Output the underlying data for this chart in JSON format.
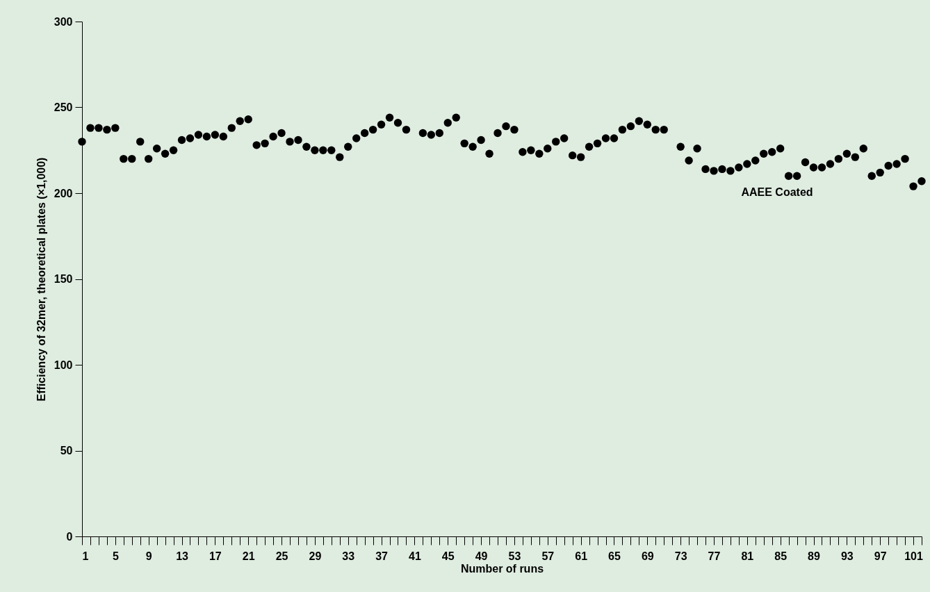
{
  "chart_data": {
    "type": "scatter",
    "xlabel": "Number of runs",
    "ylabel": "Efficiency of 32mer, theoretical plates (×1,000)",
    "x": [
      1,
      2,
      3,
      4,
      5,
      6,
      7,
      8,
      9,
      10,
      11,
      12,
      13,
      14,
      15,
      16,
      17,
      18,
      19,
      20,
      21,
      22,
      23,
      24,
      25,
      26,
      27,
      28,
      29,
      30,
      31,
      32,
      33,
      34,
      35,
      36,
      37,
      38,
      39,
      40,
      41,
      42,
      43,
      44,
      45,
      46,
      47,
      48,
      49,
      50,
      51,
      52,
      53,
      54,
      55,
      56,
      57,
      58,
      59,
      60,
      61,
      62,
      63,
      64,
      65,
      66,
      67,
      68,
      69,
      70,
      71,
      72,
      73,
      74,
      75,
      76,
      77,
      78,
      79,
      80,
      81,
      82,
      83,
      84,
      85,
      86,
      87,
      88,
      89,
      90,
      91,
      92,
      93,
      94,
      95,
      96,
      97,
      98,
      99,
      100,
      101,
      102
    ],
    "series": [
      {
        "name": "AAEE Coated",
        "color": "#000000",
        "values": [
          230,
          238,
          238,
          237,
          238,
          220,
          220,
          230,
          220,
          226,
          223,
          225,
          231,
          232,
          234,
          233,
          234,
          233,
          238,
          242,
          243,
          228,
          229,
          233,
          235,
          230,
          231,
          227,
          225,
          225,
          225,
          221,
          227,
          232,
          235,
          237,
          240,
          244,
          241,
          237,
          null,
          235,
          234,
          235,
          241,
          244,
          229,
          227,
          231,
          223,
          235,
          239,
          237,
          224,
          225,
          223,
          226,
          230,
          232,
          222,
          221,
          227,
          229,
          232,
          232,
          237,
          239,
          242,
          240,
          237,
          237,
          null,
          227,
          219,
          226,
          214,
          213,
          214,
          213,
          215,
          217,
          219,
          223,
          224,
          226,
          210,
          210,
          218,
          215,
          215,
          217,
          220,
          223,
          221,
          226,
          210,
          212,
          216,
          217,
          220,
          204,
          207
        ]
      }
    ],
    "xlim": [
      1,
      102
    ],
    "xticks": [
      1,
      {
        "value": 2,
        "label": null
      },
      {
        "value": 3,
        "label": null
      },
      {
        "value": 4,
        "label": null
      },
      5,
      {
        "value": 6,
        "label": null
      },
      {
        "value": 7,
        "label": null
      },
      {
        "value": 8,
        "label": null
      },
      9,
      {
        "value": 10,
        "label": null
      },
      {
        "value": 11,
        "label": null
      },
      {
        "value": 12,
        "label": null
      },
      13,
      {
        "value": 14,
        "label": null
      },
      {
        "value": 15,
        "label": null
      },
      {
        "value": 16,
        "label": null
      },
      17,
      {
        "value": 18,
        "label": null
      },
      {
        "value": 19,
        "label": null
      },
      {
        "value": 20,
        "label": null
      },
      21,
      {
        "value": 22,
        "label": null
      },
      {
        "value": 23,
        "label": null
      },
      {
        "value": 24,
        "label": null
      },
      25,
      {
        "value": 26,
        "label": null
      },
      {
        "value": 27,
        "label": null
      },
      {
        "value": 28,
        "label": null
      },
      29,
      {
        "value": 30,
        "label": null
      },
      {
        "value": 31,
        "label": null
      },
      {
        "value": 32,
        "label": null
      },
      33,
      {
        "value": 34,
        "label": null
      },
      {
        "value": 35,
        "label": null
      },
      {
        "value": 36,
        "label": null
      },
      37,
      {
        "value": 38,
        "label": null
      },
      {
        "value": 39,
        "label": null
      },
      {
        "value": 40,
        "label": null
      },
      41,
      {
        "value": 42,
        "label": null
      },
      {
        "value": 43,
        "label": null
      },
      {
        "value": 44,
        "label": null
      },
      45,
      {
        "value": 46,
        "label": null
      },
      {
        "value": 47,
        "label": null
      },
      {
        "value": 48,
        "label": null
      },
      49,
      {
        "value": 50,
        "label": null
      },
      {
        "value": 51,
        "label": null
      },
      {
        "value": 52,
        "label": null
      },
      53,
      {
        "value": 54,
        "label": null
      },
      {
        "value": 55,
        "label": null
      },
      {
        "value": 56,
        "label": null
      },
      57,
      {
        "value": 58,
        "label": null
      },
      {
        "value": 59,
        "label": null
      },
      {
        "value": 60,
        "label": null
      },
      61,
      {
        "value": 62,
        "label": null
      },
      {
        "value": 63,
        "label": null
      },
      {
        "value": 64,
        "label": null
      },
      65,
      {
        "value": 66,
        "label": null
      },
      {
        "value": 67,
        "label": null
      },
      {
        "value": 68,
        "label": null
      },
      69,
      {
        "value": 70,
        "label": null
      },
      {
        "value": 71,
        "label": null
      },
      {
        "value": 72,
        "label": null
      },
      73,
      {
        "value": 74,
        "label": null
      },
      {
        "value": 75,
        "label": null
      },
      {
        "value": 76,
        "label": null
      },
      77,
      {
        "value": 78,
        "label": null
      },
      {
        "value": 79,
        "label": null
      },
      {
        "value": 80,
        "label": null
      },
      81,
      {
        "value": 82,
        "label": null
      },
      {
        "value": 83,
        "label": null
      },
      {
        "value": 84,
        "label": null
      },
      85,
      {
        "value": 86,
        "label": null
      },
      {
        "value": 87,
        "label": null
      },
      {
        "value": 88,
        "label": null
      },
      89,
      {
        "value": 90,
        "label": null
      },
      {
        "value": 91,
        "label": null
      },
      {
        "value": 92,
        "label": null
      },
      93,
      {
        "value": 94,
        "label": null
      },
      {
        "value": 95,
        "label": null
      },
      {
        "value": 96,
        "label": null
      },
      97,
      {
        "value": 98,
        "label": null
      },
      {
        "value": 99,
        "label": null
      },
      {
        "value": 100,
        "label": null
      },
      101,
      {
        "value": 102,
        "label": null
      }
    ],
    "ylim": [
      0,
      300
    ],
    "yticks": [
      0,
      50,
      100,
      150,
      200,
      250,
      300
    ],
    "grid": false,
    "legend": false,
    "marker": "circle"
  }
}
